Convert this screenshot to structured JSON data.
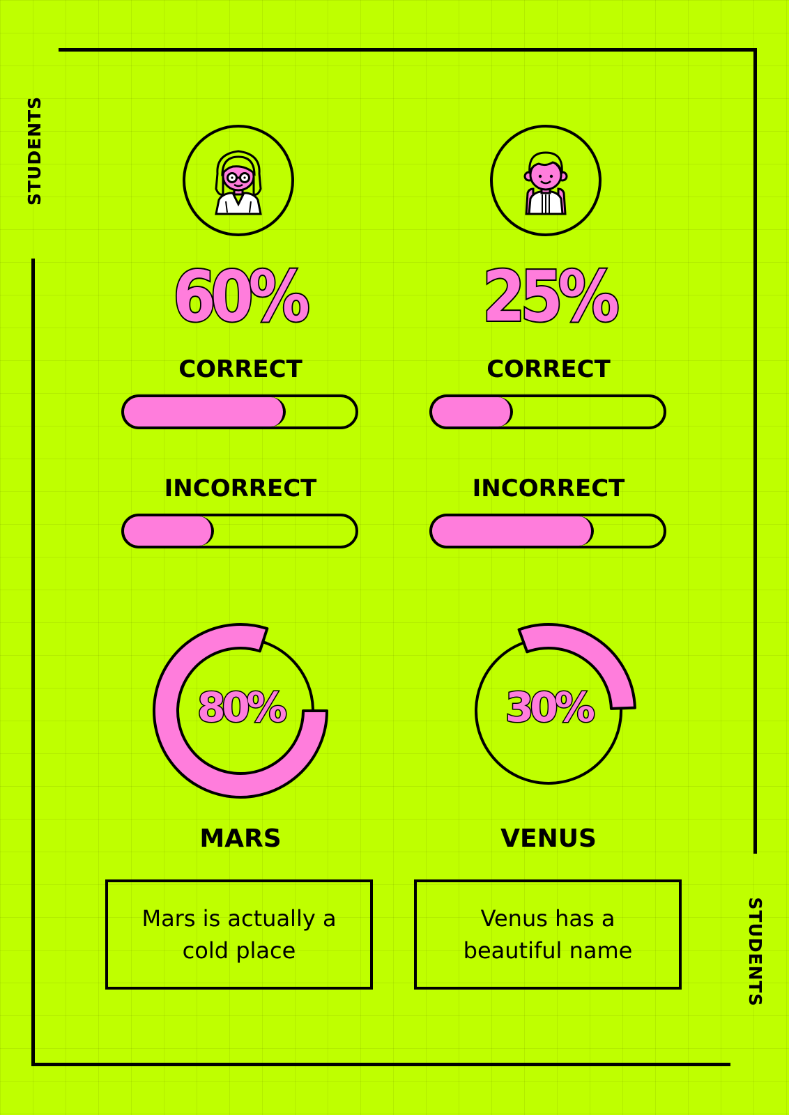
{
  "side_labels": {
    "left": "STUDENTS",
    "right": "STUDENTS"
  },
  "colors": {
    "background": "#bfff00",
    "accent_pink": "#ff7ddc",
    "outline": "#000000"
  },
  "students": [
    {
      "planet": "MARS",
      "avatar_icon": "girl-with-glasses-icon",
      "score_text": "60%",
      "correct_label": "CORRECT",
      "correct_fraction": 0.7,
      "incorrect_label": "INCORRECT",
      "incorrect_fraction": 0.39,
      "donut_text": "80%",
      "donut_value": 0.8,
      "note": "Mars is actually a cold place"
    },
    {
      "planet": "VENUS",
      "avatar_icon": "boy-smiling-icon",
      "score_text": "25%",
      "correct_label": "CORRECT",
      "correct_fraction": 0.35,
      "incorrect_label": "INCORRECT",
      "incorrect_fraction": 0.7,
      "donut_text": "30%",
      "donut_value": 0.3,
      "note": "Venus has a beautiful name"
    }
  ]
}
